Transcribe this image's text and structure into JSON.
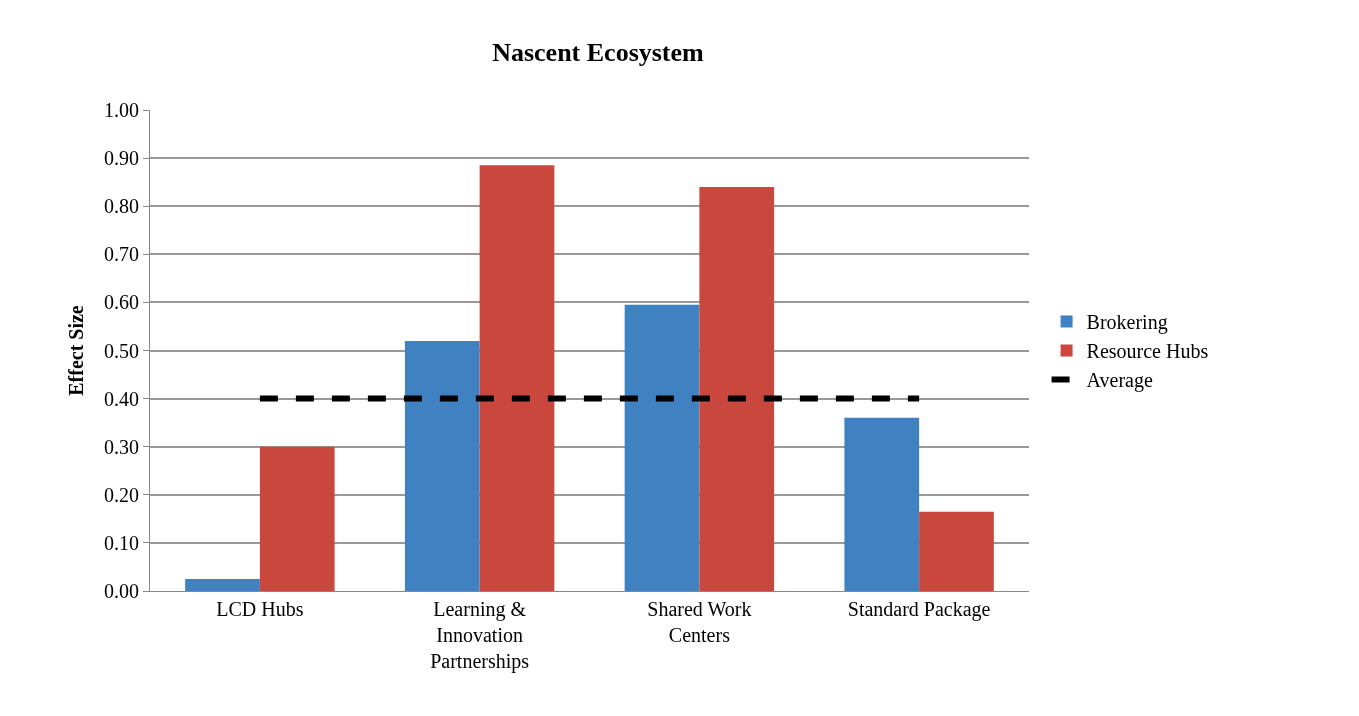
{
  "chart_data": {
    "type": "bar",
    "title": "Nascent Ecosystem",
    "ylabel": "Effect Size",
    "categories": [
      "LCD Hubs",
      "Learning &\nInnovation\nPartnerships",
      "Shared Work\nCenters",
      "Standard Package"
    ],
    "series": [
      {
        "name": "Brokering",
        "color": "#3f81c1",
        "values": [
          0.025,
          0.52,
          0.595,
          0.36
        ]
      },
      {
        "name": "Resource Hubs",
        "color": "#c9473d",
        "values": [
          0.3,
          0.885,
          0.84,
          0.165
        ]
      },
      {
        "name": "Average",
        "type": "line",
        "color": "#000000",
        "line_style": "dashed",
        "values": [
          0.4,
          0.4,
          0.4,
          0.4
        ]
      }
    ],
    "ylim": [
      0,
      1.0
    ],
    "yticks": [
      {
        "value": 0,
        "label": "0.00"
      },
      {
        "value": 0.1,
        "label": "0.10"
      },
      {
        "value": 0.2,
        "label": "0.20"
      },
      {
        "value": 0.3,
        "label": "0.30"
      },
      {
        "value": 0.4,
        "label": "0.40"
      },
      {
        "value": 0.5,
        "label": "0.50"
      },
      {
        "value": 0.6,
        "label": "0.60"
      },
      {
        "value": 0.7,
        "label": "0.70"
      },
      {
        "value": 0.8,
        "label": "0.80"
      },
      {
        "value": 0.9,
        "label": "0.90"
      },
      {
        "value": 1.0,
        "label": "1.00"
      }
    ],
    "grid": "y",
    "legend": "right"
  }
}
